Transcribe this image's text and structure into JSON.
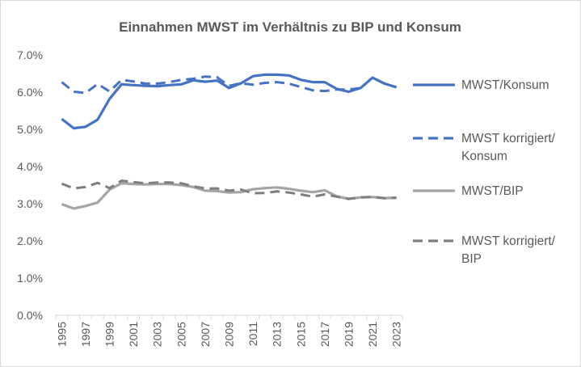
{
  "chart_data": {
    "type": "line",
    "title": "Einnahmen MWST im Verhältnis zu BIP und Konsum",
    "xlabel": "",
    "ylabel": "",
    "ylim": [
      0,
      0.07
    ],
    "y_ticks": [
      "0.0%",
      "1.0%",
      "2.0%",
      "3.0%",
      "4.0%",
      "5.0%",
      "6.0%",
      "7.0%"
    ],
    "x": [
      1995,
      1996,
      1997,
      1998,
      1999,
      2000,
      2001,
      2002,
      2003,
      2004,
      2005,
      2006,
      2007,
      2008,
      2009,
      2010,
      2011,
      2012,
      2013,
      2014,
      2015,
      2016,
      2017,
      2018,
      2019,
      2020,
      2021,
      2022,
      2023
    ],
    "x_tick_labels": [
      "1995",
      "1997",
      "1999",
      "2001",
      "2003",
      "2005",
      "2007",
      "2009",
      "2011",
      "2013",
      "2015",
      "2017",
      "2019",
      "2021",
      "2023"
    ],
    "grid": false,
    "legend_position": "right",
    "series": [
      {
        "name": "MWST/Konsum",
        "style": "solid",
        "color": "#4472c4",
        "values": [
          0.0528,
          0.0503,
          0.0507,
          0.0526,
          0.0582,
          0.0621,
          0.0619,
          0.0617,
          0.0616,
          0.0619,
          0.0621,
          0.0632,
          0.0628,
          0.0631,
          0.0611,
          0.0624,
          0.0643,
          0.0647,
          0.0647,
          0.0645,
          0.0633,
          0.0627,
          0.0627,
          0.0609,
          0.0601,
          0.0611,
          0.0639,
          0.0623,
          0.0613
        ]
      },
      {
        "name_lines": [
          "MWST korrigiert/",
          "Konsum"
        ],
        "style": "dashed",
        "color": "#4472c4",
        "values": [
          0.0627,
          0.0601,
          0.0598,
          0.0622,
          0.0602,
          0.0633,
          0.0629,
          0.0623,
          0.0623,
          0.0627,
          0.0633,
          0.0636,
          0.0642,
          0.064,
          0.0617,
          0.0624,
          0.062,
          0.0625,
          0.0627,
          0.0623,
          0.0614,
          0.0605,
          0.0603,
          0.0607,
          0.0607,
          0.0611,
          0.0639,
          0.0623,
          0.0613
        ]
      },
      {
        "name": "MWST/BIP",
        "style": "solid",
        "color": "#a5a5a5",
        "values": [
          0.0299,
          0.0287,
          0.0294,
          0.0303,
          0.0338,
          0.0355,
          0.0353,
          0.0352,
          0.0353,
          0.0353,
          0.035,
          0.0345,
          0.0335,
          0.0334,
          0.033,
          0.0331,
          0.0339,
          0.0342,
          0.0344,
          0.034,
          0.0335,
          0.0331,
          0.0336,
          0.032,
          0.0313,
          0.0317,
          0.0318,
          0.0315,
          0.0316
        ]
      },
      {
        "name_lines": [
          "MWST korrigiert/",
          "BIP"
        ],
        "style": "dashed",
        "color": "#7f7f7f",
        "values": [
          0.0354,
          0.0341,
          0.0345,
          0.0356,
          0.0342,
          0.0362,
          0.0358,
          0.0355,
          0.0357,
          0.0357,
          0.0355,
          0.0347,
          0.0341,
          0.0341,
          0.0335,
          0.0338,
          0.0328,
          0.0329,
          0.0333,
          0.033,
          0.0325,
          0.0319,
          0.0325,
          0.0319,
          0.0313,
          0.0317,
          0.0318,
          0.0315,
          0.0316
        ]
      }
    ]
  }
}
